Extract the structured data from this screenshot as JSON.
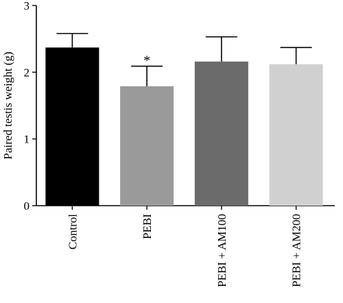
{
  "chart_data": {
    "type": "bar",
    "title": "",
    "xlabel": "",
    "ylabel": "Paired testis weight (g)",
    "ylim": [
      0,
      3
    ],
    "yticks": [
      "0",
      "1",
      "2",
      "3"
    ],
    "grid": false,
    "categories": [
      "Control",
      "PEBI",
      "PEBI + AM100",
      "PEBI + AM200"
    ],
    "values": [
      2.37,
      1.79,
      2.16,
      2.12
    ],
    "error": [
      0.21,
      0.3,
      0.37,
      0.25
    ],
    "colors": [
      "#000000",
      "#9a9a9a",
      "#6b6b6b",
      "#d0d0d0"
    ],
    "annotations": [
      {
        "category": "PEBI",
        "text": "*"
      }
    ]
  }
}
